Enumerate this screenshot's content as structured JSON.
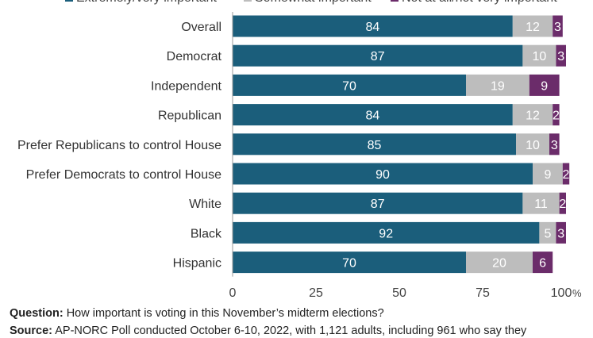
{
  "chart_data": {
    "type": "bar",
    "orientation": "horizontal",
    "stacked": true,
    "categories": [
      "Overall",
      "Democrat",
      "Independent",
      "Republican",
      "Prefer Republicans to control House",
      "Prefer Democrats to control House",
      "White",
      "Black",
      "Hispanic"
    ],
    "series": [
      {
        "name": "Extremely/very important",
        "color": "#1b5e7b",
        "label_color": "#ffffff",
        "values": [
          84,
          87,
          70,
          84,
          85,
          90,
          87,
          92,
          70
        ]
      },
      {
        "name": "Somewhat important",
        "color": "#bdbdbd",
        "label_color": "#ffffff",
        "values": [
          12,
          10,
          19,
          12,
          10,
          9,
          11,
          5,
          20
        ]
      },
      {
        "name": "Not at all/not very important",
        "color": "#6b2c6a",
        "label_color": "#ffffff",
        "values": [
          3,
          3,
          9,
          2,
          3,
          2,
          2,
          3,
          6
        ]
      }
    ],
    "xlim": [
      0,
      100
    ],
    "xticks": [
      "0",
      "25",
      "50",
      "75",
      "100"
    ],
    "xtick_suffix": "%",
    "legend_position": "top",
    "grid": false
  },
  "notes": {
    "question_label": "Question:",
    "question_text": " How important is voting in this November’s midterm elections?",
    "source_label": "Source:",
    "source_text": " AP-NORC Poll conducted October 6-10, 2022, with 1,121 adults, including 961 who say they"
  }
}
